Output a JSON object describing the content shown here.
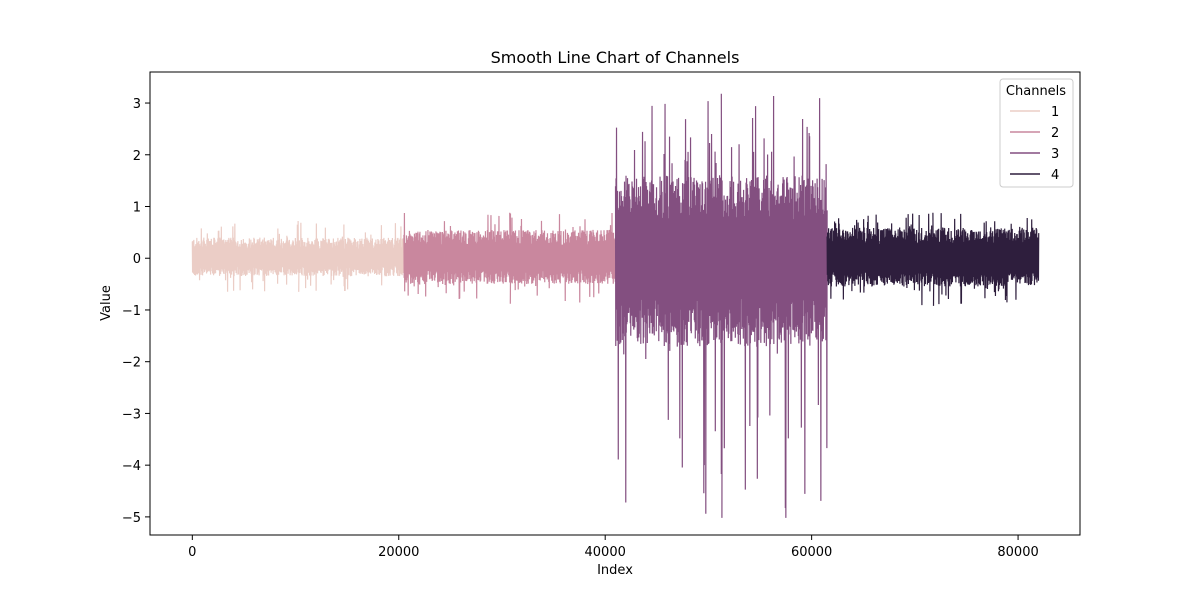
{
  "chart_data": {
    "type": "line",
    "title": "Smooth Line Chart of Channels",
    "xlabel": "Index",
    "ylabel": "Value",
    "xlim": [
      -4100,
      86000
    ],
    "ylim": [
      -5.35,
      3.6
    ],
    "x_ticks": [
      0,
      20000,
      40000,
      60000,
      80000
    ],
    "x_tick_labels": [
      "0",
      "20000",
      "40000",
      "60000",
      "80000"
    ],
    "y_ticks": [
      3,
      2,
      1,
      0,
      -1,
      -2,
      -3,
      -4,
      -5
    ],
    "y_tick_labels": [
      "3",
      "2",
      "1",
      "0",
      "−1",
      "−2",
      "−3",
      "−4",
      "−5"
    ],
    "grid": false,
    "legend": {
      "title": "Channels",
      "placement": "top-right"
    },
    "series": [
      {
        "name": "1",
        "color": "#ebcdc6",
        "x_range": [
          0,
          20500
        ],
        "typical_range": [
          -0.35,
          0.4
        ],
        "min": -0.65,
        "max": 0.72
      },
      {
        "name": "2",
        "color": "#c9879e",
        "x_range": [
          20500,
          41000
        ],
        "typical_range": [
          -0.5,
          0.55
        ],
        "min": -0.88,
        "max": 0.88
      },
      {
        "name": "3",
        "color": "#834f80",
        "x_range": [
          41000,
          61500
        ],
        "typical_range": [
          -1.7,
          1.6
        ],
        "min": -5.02,
        "max": 3.18
      },
      {
        "name": "4",
        "color": "#2e1e3d",
        "x_range": [
          61500,
          82000
        ],
        "typical_range": [
          -0.55,
          0.6
        ],
        "min": -0.92,
        "max": 0.88
      }
    ]
  }
}
